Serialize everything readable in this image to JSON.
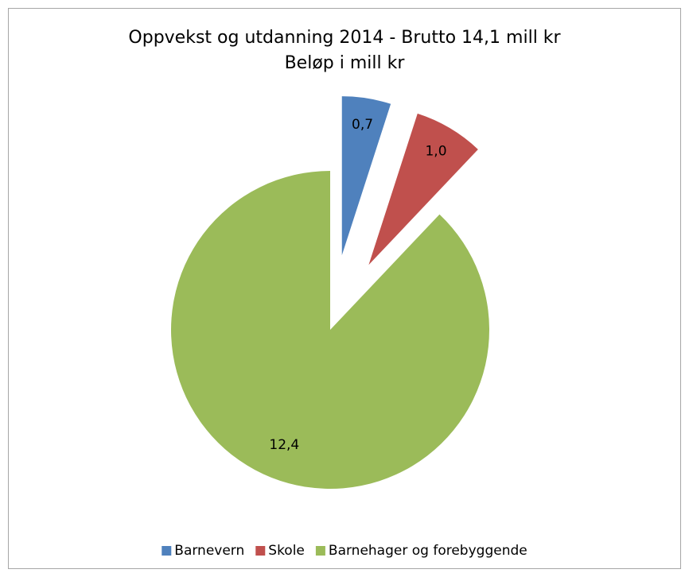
{
  "chart_data": {
    "type": "pie",
    "title": "Oppvekst og utdanning 2014 - Brutto 14,1 mill kr",
    "subtitle": "Beløp i mill kr",
    "categories": [
      "Barnevern",
      "Skole",
      "Barnehager og forebyggende"
    ],
    "values": [
      0.7,
      1.0,
      12.4
    ],
    "value_labels": [
      "0,7",
      "1,0",
      "12,4"
    ],
    "colors": [
      "#4f81bd",
      "#c0504d",
      "#9bbb59"
    ],
    "exploded": [
      true,
      true,
      false
    ],
    "legend": "bottom"
  }
}
